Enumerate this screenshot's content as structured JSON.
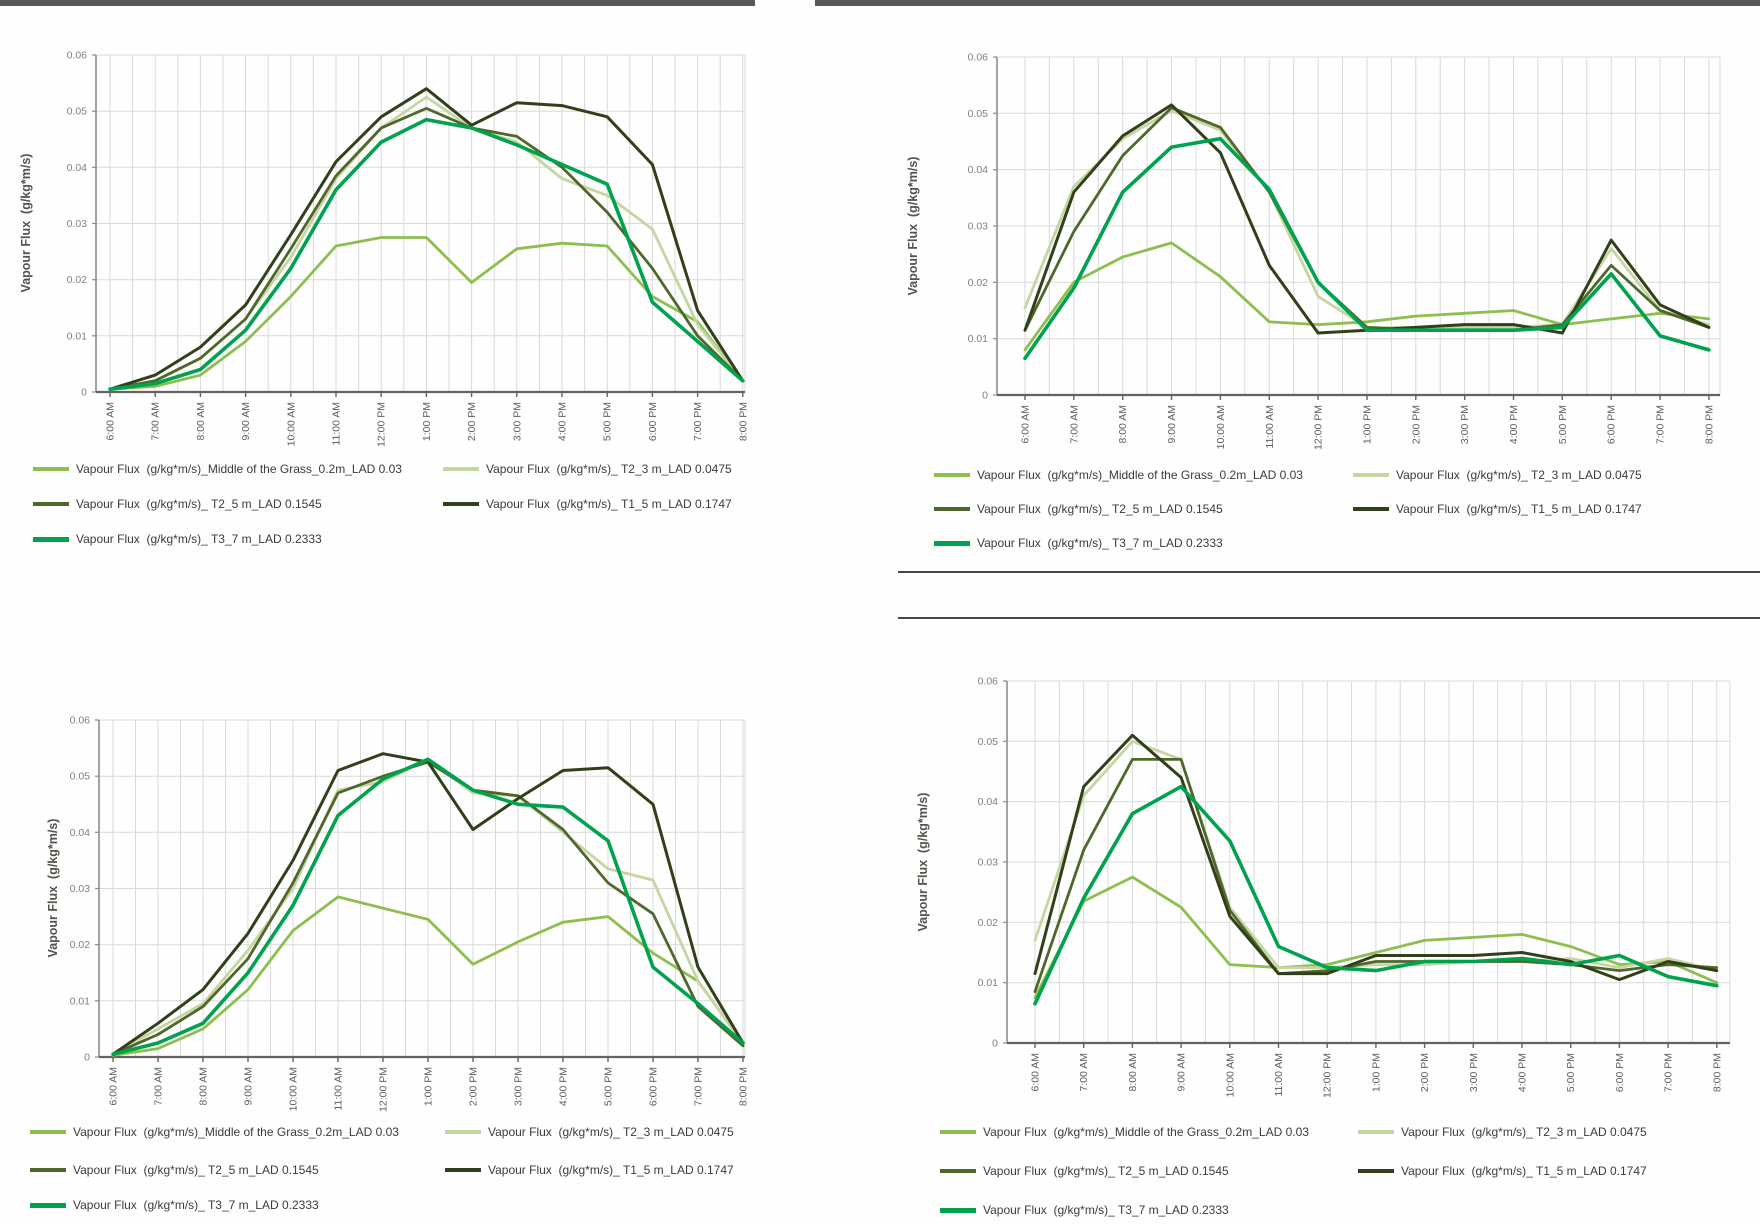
{
  "page": {
    "background": "#fefefe"
  },
  "palette": {
    "grass": "#8EBE4F",
    "t2_3": "#C5D6A1",
    "t2_5": "#4E682B",
    "t1_5": "#31401A",
    "t3_7": "#00A14F",
    "gridline": "#d9d9d8",
    "axis": "#8c8c8a",
    "axis_bottom": "#636361",
    "tick_text": "#82817e",
    "xtick_text": "#5f5f5d",
    "legend_text": "#3c3b37",
    "ytitle_text": "#55524c",
    "top_border": "#57585a",
    "divider": "#474747"
  },
  "chart_data": [
    {
      "id": "top-left",
      "type": "line",
      "title": "",
      "xlabel": "",
      "ylabel": "Vapour Flux  (g/kg*m/s)",
      "ylim": [
        0,
        0.06
      ],
      "ytick_labels": [
        "0",
        "0.01",
        "0.02",
        "0.03",
        "0.04",
        "0.05",
        "0.06"
      ],
      "grid": true,
      "legend_position": "bottom",
      "legend_columns": 2,
      "categories": [
        "6:00 AM",
        "7:00 AM",
        "8:00 AM",
        "9:00 AM",
        "10:00 AM",
        "11:00 AM",
        "12:00 PM",
        "1:00 PM",
        "2:00 PM",
        "3:00 PM",
        "4:00 PM",
        "5:00 PM",
        "6:00 PM",
        "7:00 PM",
        "8:00 PM"
      ],
      "series": [
        {
          "name": "Vapour Flux  (g/kg*m/s)_Middle of the Grass_0.2m_LAD 0.03",
          "color": "#8EBE4F",
          "width": 2.8,
          "values": [
            0.0005,
            0.001,
            0.003,
            0.009,
            0.017,
            0.026,
            0.0275,
            0.0275,
            0.0195,
            0.0255,
            0.0265,
            0.026,
            0.017,
            0.0125,
            0.002
          ]
        },
        {
          "name": "Vapour Flux  (g/kg*m/s)_ T2_3 m_LAD 0.0475",
          "color": "#C5D6A1",
          "width": 2.8,
          "values": [
            0.0005,
            0.002,
            0.006,
            0.013,
            0.024,
            0.038,
            0.047,
            0.0525,
            0.047,
            0.0445,
            0.038,
            0.035,
            0.029,
            0.012,
            0.002
          ]
        },
        {
          "name": "Vapour Flux  (g/kg*m/s)_ T2_5 m_LAD 0.1545",
          "color": "#4E682B",
          "width": 2.8,
          "values": [
            0.0005,
            0.002,
            0.006,
            0.013,
            0.0255,
            0.0385,
            0.047,
            0.0505,
            0.047,
            0.0455,
            0.04,
            0.032,
            0.022,
            0.01,
            0.002
          ]
        },
        {
          "name": "Vapour Flux  (g/kg*m/s)_ T1_5 m_LAD 0.1747",
          "color": "#31401A",
          "width": 3,
          "values": [
            0.0005,
            0.003,
            0.008,
            0.0155,
            0.028,
            0.041,
            0.049,
            0.054,
            0.0475,
            0.0515,
            0.051,
            0.049,
            0.0405,
            0.0145,
            0.002
          ]
        },
        {
          "name": "Vapour Flux  (g/kg*m/s)_ T3_7 m_LAD 0.2333",
          "color": "#00A14F",
          "width": 3.6,
          "values": [
            0.0005,
            0.0015,
            0.004,
            0.011,
            0.022,
            0.036,
            0.0445,
            0.0485,
            0.047,
            0.044,
            0.0405,
            0.037,
            0.016,
            0.009,
            0.002
          ]
        }
      ]
    },
    {
      "id": "top-right",
      "type": "line",
      "title": "",
      "xlabel": "",
      "ylabel": "Vapour Flux  (g/kg*m/s)",
      "ylim": [
        0,
        0.06
      ],
      "ytick_labels": [
        "0",
        "0.01",
        "0.02",
        "0.03",
        "0.04",
        "0.05",
        "0.06"
      ],
      "grid": true,
      "legend_position": "bottom",
      "legend_columns": 2,
      "categories": [
        "6:00 AM",
        "7:00 AM",
        "8:00 AM",
        "9:00 AM",
        "10:00 AM",
        "11:00 AM",
        "12:00 PM",
        "1:00 PM",
        "2:00 PM",
        "3:00 PM",
        "4:00 PM",
        "5:00 PM",
        "6:00 PM",
        "7:00 PM",
        "8:00 PM"
      ],
      "series": [
        {
          "name": "Vapour Flux  (g/kg*m/s)_Middle of the Grass_0.2m_LAD 0.03",
          "color": "#8EBE4F",
          "width": 2.8,
          "values": [
            0.008,
            0.02,
            0.0245,
            0.027,
            0.021,
            0.013,
            0.0125,
            0.013,
            0.014,
            0.0145,
            0.015,
            0.0125,
            0.0135,
            0.0145,
            0.0135
          ]
        },
        {
          "name": "Vapour Flux  (g/kg*m/s)_ T2_3 m_LAD 0.0475",
          "color": "#C5D6A1",
          "width": 2.8,
          "values": [
            0.0155,
            0.037,
            0.0455,
            0.0505,
            0.047,
            0.036,
            0.0175,
            0.012,
            0.012,
            0.012,
            0.012,
            0.0125,
            0.026,
            0.015,
            0.0125
          ]
        },
        {
          "name": "Vapour Flux  (g/kg*m/s)_ T2_5 m_LAD 0.1545",
          "color": "#4E682B",
          "width": 2.8,
          "values": [
            0.0115,
            0.029,
            0.0425,
            0.051,
            0.0475,
            0.036,
            0.02,
            0.012,
            0.0115,
            0.0115,
            0.0115,
            0.0125,
            0.023,
            0.015,
            0.012
          ]
        },
        {
          "name": "Vapour Flux  (g/kg*m/s)_ T1_5 m_LAD 0.1747",
          "color": "#31401A",
          "width": 3,
          "values": [
            0.0115,
            0.036,
            0.046,
            0.0515,
            0.043,
            0.023,
            0.011,
            0.0115,
            0.012,
            0.0125,
            0.0125,
            0.011,
            0.0275,
            0.016,
            0.012
          ]
        },
        {
          "name": "Vapour Flux  (g/kg*m/s)_ T3_7 m_LAD 0.2333",
          "color": "#00A14F",
          "width": 3.6,
          "values": [
            0.0065,
            0.019,
            0.036,
            0.044,
            0.0455,
            0.0365,
            0.02,
            0.0115,
            0.0115,
            0.0115,
            0.0115,
            0.012,
            0.0215,
            0.0105,
            0.008
          ]
        }
      ]
    },
    {
      "id": "bottom-left",
      "type": "line",
      "title": "",
      "xlabel": "",
      "ylabel": "Vapour Flux  (g/kg*m/s)",
      "ylim": [
        0,
        0.06
      ],
      "ytick_labels": [
        "0",
        "0.01",
        "0.02",
        "0.03",
        "0.04",
        "0.05",
        "0.06"
      ],
      "grid": true,
      "legend_position": "bottom",
      "legend_columns": 2,
      "categories": [
        "6:00 AM",
        "7:00 AM",
        "8:00 AM",
        "9:00 AM",
        "10:00 AM",
        "11:00 AM",
        "12:00 PM",
        "1:00 PM",
        "2:00 PM",
        "3:00 PM",
        "4:00 PM",
        "5:00 PM",
        "6:00 PM",
        "7:00 PM",
        "8:00 PM"
      ],
      "series": [
        {
          "name": "Vapour Flux  (g/kg*m/s)_Middle of the Grass_0.2m_LAD 0.03",
          "color": "#8EBE4F",
          "width": 2.8,
          "values": [
            0.0003,
            0.0015,
            0.005,
            0.012,
            0.0225,
            0.0285,
            0.0265,
            0.0245,
            0.0165,
            0.0205,
            0.024,
            0.025,
            0.0185,
            0.0135,
            0.0025
          ]
        },
        {
          "name": "Vapour Flux  (g/kg*m/s)_ T2_3 m_LAD 0.0475",
          "color": "#C5D6A1",
          "width": 2.8,
          "values": [
            0.0005,
            0.005,
            0.0095,
            0.019,
            0.03,
            0.0475,
            0.049,
            0.053,
            0.047,
            0.0465,
            0.04,
            0.0335,
            0.0315,
            0.0135,
            0.0025
          ]
        },
        {
          "name": "Vapour Flux  (g/kg*m/s)_ T2_5 m_LAD 0.1545",
          "color": "#4E682B",
          "width": 2.8,
          "values": [
            0.0005,
            0.004,
            0.009,
            0.0175,
            0.031,
            0.047,
            0.05,
            0.0525,
            0.0475,
            0.0465,
            0.0405,
            0.031,
            0.0255,
            0.009,
            0.002
          ]
        },
        {
          "name": "Vapour Flux  (g/kg*m/s)_ T1_5 m_LAD 0.1747",
          "color": "#31401A",
          "width": 3,
          "values": [
            0.0005,
            0.006,
            0.012,
            0.022,
            0.035,
            0.051,
            0.054,
            0.0525,
            0.0405,
            0.046,
            0.051,
            0.0515,
            0.045,
            0.016,
            0.0025
          ]
        },
        {
          "name": "Vapour Flux  (g/kg*m/s)_ T3_7 m_LAD 0.2333",
          "color": "#00A14F",
          "width": 3.6,
          "values": [
            0.0005,
            0.0025,
            0.006,
            0.015,
            0.027,
            0.043,
            0.0495,
            0.053,
            0.0475,
            0.045,
            0.0445,
            0.0385,
            0.016,
            0.0095,
            0.0025
          ]
        }
      ]
    },
    {
      "id": "bottom-right",
      "type": "line",
      "title": "",
      "xlabel": "",
      "ylabel": "Vapour Flux  (g/kg*m/s)",
      "ylim": [
        0,
        0.06
      ],
      "ytick_labels": [
        "0",
        "0.01",
        "0.02",
        "0.03",
        "0.04",
        "0.05",
        "0.06"
      ],
      "grid": true,
      "legend_position": "bottom",
      "legend_columns": 2,
      "categories": [
        "6:00 AM",
        "7:00 AM",
        "8:00 AM",
        "9:00 AM",
        "10:00 AM",
        "11:00 AM",
        "12:00 PM",
        "1:00 PM",
        "2:00 PM",
        "3:00 PM",
        "4:00 PM",
        "5:00 PM",
        "6:00 PM",
        "7:00 PM",
        "8:00 PM"
      ],
      "series": [
        {
          "name": "Vapour Flux  (g/kg*m/s)_Middle of the Grass_0.2m_LAD 0.03",
          "color": "#8EBE4F",
          "width": 2.8,
          "values": [
            0.0075,
            0.0235,
            0.0275,
            0.0225,
            0.013,
            0.0125,
            0.013,
            0.015,
            0.017,
            0.0175,
            0.018,
            0.016,
            0.013,
            0.0135,
            0.01
          ]
        },
        {
          "name": "Vapour Flux  (g/kg*m/s)_ T2_3 m_LAD 0.0475",
          "color": "#C5D6A1",
          "width": 2.8,
          "values": [
            0.017,
            0.041,
            0.05,
            0.047,
            0.0225,
            0.0125,
            0.0125,
            0.013,
            0.013,
            0.0135,
            0.0135,
            0.014,
            0.0125,
            0.014,
            0.012
          ]
        },
        {
          "name": "Vapour Flux  (g/kg*m/s)_ T2_5 m_LAD 0.1545",
          "color": "#4E682B",
          "width": 2.8,
          "values": [
            0.0085,
            0.032,
            0.047,
            0.047,
            0.022,
            0.0115,
            0.012,
            0.0135,
            0.0135,
            0.0135,
            0.0135,
            0.013,
            0.012,
            0.013,
            0.0125
          ]
        },
        {
          "name": "Vapour Flux  (g/kg*m/s)_ T1_5 m_LAD 0.1747",
          "color": "#31401A",
          "width": 3,
          "values": [
            0.0115,
            0.0425,
            0.051,
            0.044,
            0.021,
            0.0115,
            0.0115,
            0.0145,
            0.0145,
            0.0145,
            0.015,
            0.0135,
            0.0105,
            0.0135,
            0.012
          ]
        },
        {
          "name": "Vapour Flux  (g/kg*m/s)_ T3_7 m_LAD 0.2333",
          "color": "#00A14F",
          "width": 3.6,
          "values": [
            0.0065,
            0.024,
            0.038,
            0.0425,
            0.0335,
            0.016,
            0.0125,
            0.012,
            0.0135,
            0.0135,
            0.014,
            0.013,
            0.0145,
            0.011,
            0.0095
          ]
        }
      ]
    }
  ]
}
